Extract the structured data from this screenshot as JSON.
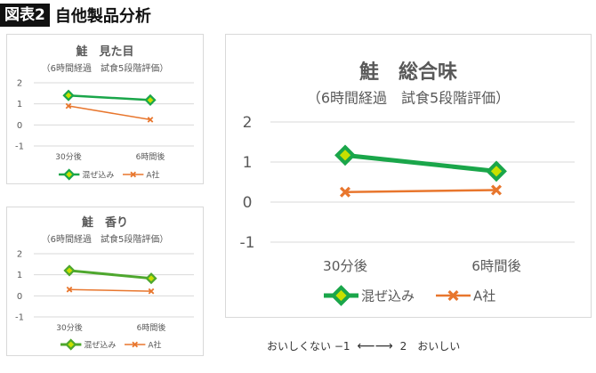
{
  "header": {
    "tag": "図表2",
    "title": "自他製品分析"
  },
  "colors": {
    "green": "#1aa64a",
    "green_alt": "#4ea72e",
    "orange": "#e8762d"
  },
  "chart_data": [
    {
      "type": "line",
      "title": "鮭　見た目",
      "subtitle": "（6時間経過　試食5段階評価）",
      "categories": [
        "30分後",
        "6時間後"
      ],
      "ylim": [
        -1,
        2
      ],
      "yticks": [
        "2",
        "1",
        "0",
        "-1"
      ],
      "grid": true,
      "legend": "bottom",
      "series": [
        {
          "name": "混ぜ込み",
          "values": [
            1.4,
            1.18
          ],
          "color": "#1aa64a",
          "marker": "diamond"
        },
        {
          "name": "A社",
          "values": [
            0.9,
            0.25
          ],
          "color": "#e8762d",
          "marker": "x"
        }
      ]
    },
    {
      "type": "line",
      "title": "鮭　香り",
      "subtitle": "（6時間経過　試食5段階評価）",
      "categories": [
        "30分後",
        "6時間後"
      ],
      "ylim": [
        -1,
        2
      ],
      "yticks": [
        "2",
        "1",
        "0",
        "-1"
      ],
      "grid": true,
      "legend": "bottom",
      "series": [
        {
          "name": "混ぜ込み",
          "values": [
            1.2,
            0.83
          ],
          "color": "#4ea72e",
          "marker": "diamond"
        },
        {
          "name": "A社",
          "values": [
            0.3,
            0.22
          ],
          "color": "#e8762d",
          "marker": "x"
        }
      ]
    },
    {
      "type": "line",
      "title": "鮭　総合味",
      "subtitle": "（6時間経過　試食5段階評価）",
      "categories": [
        "30分後",
        "6時間後"
      ],
      "ylim": [
        -1,
        2
      ],
      "yticks": [
        "2",
        "1",
        "0",
        "-1"
      ],
      "grid": true,
      "legend": "bottom",
      "series": [
        {
          "name": "混ぜ込み",
          "values": [
            1.17,
            0.77
          ],
          "color": "#1aa64a",
          "marker": "diamond"
        },
        {
          "name": "A社",
          "values": [
            0.25,
            0.3
          ],
          "color": "#e8762d",
          "marker": "x"
        }
      ]
    }
  ],
  "scale_note": {
    "left": "おいしくない −1",
    "right": "2　おいしい"
  }
}
